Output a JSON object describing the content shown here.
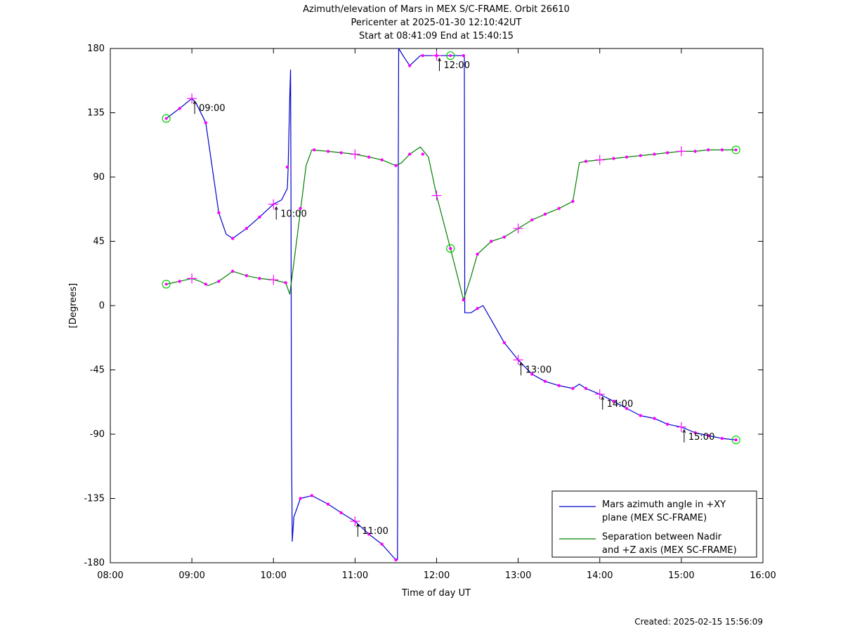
{
  "chart_data": {
    "type": "line",
    "title": [
      "Azimuth/elevation of Mars in MEX S/C-FRAME.  Orbit 26610",
      "Pericenter at 2025-01-30 12:10:42UT",
      "Start at 08:41:09 End at 15:40:15"
    ],
    "xlabel": "Time of day UT",
    "ylabel": "[Degrees]",
    "xlim": [
      8,
      16
    ],
    "ylim": [
      -180,
      180
    ],
    "xticks": [
      8,
      9,
      10,
      11,
      12,
      13,
      14,
      15,
      16
    ],
    "xtick_labels": [
      "08:00",
      "09:00",
      "10:00",
      "11:00",
      "12:00",
      "13:00",
      "14:00",
      "15:00",
      "16:00"
    ],
    "yticks": [
      180,
      135,
      90,
      45,
      0,
      -45,
      -90,
      -135,
      -180
    ],
    "ytick_labels": [
      "180",
      "135",
      "90",
      "45",
      "0",
      "-45",
      "-90",
      "-135",
      "-180"
    ],
    "legend_placement": "bottom-right",
    "series": [
      {
        "name": "Mars azimuth angle in +XY plane (MEX SC-FRAME)",
        "legend_lines": [
          "Mars azimuth angle in +XY",
          "plane (MEX SC-FRAME)"
        ],
        "color": "#0000cc",
        "points": [
          [
            8.686,
            131
          ],
          [
            8.85,
            138
          ],
          [
            9.0,
            145
          ],
          [
            9.05,
            142
          ],
          [
            9.17,
            128
          ],
          [
            9.33,
            65
          ],
          [
            9.42,
            50
          ],
          [
            9.5,
            47
          ],
          [
            9.67,
            54
          ],
          [
            9.83,
            62
          ],
          [
            10.0,
            71
          ],
          [
            10.1,
            74
          ],
          [
            10.17,
            82
          ],
          [
            10.18,
            97
          ],
          [
            10.2,
            147
          ],
          [
            10.21,
            165
          ],
          [
            10.215,
            80
          ],
          [
            10.22,
            -80
          ],
          [
            10.23,
            -165
          ],
          [
            10.25,
            -148
          ],
          [
            10.33,
            -135
          ],
          [
            10.47,
            -133
          ],
          [
            10.67,
            -139
          ],
          [
            10.83,
            -145
          ],
          [
            11.0,
            -151
          ],
          [
            11.17,
            -160
          ],
          [
            11.33,
            -167
          ],
          [
            11.5,
            -178
          ],
          [
            11.52,
            -178
          ],
          [
            11.525,
            -90
          ],
          [
            11.53,
            90
          ],
          [
            11.535,
            180
          ],
          [
            11.6,
            174
          ],
          [
            11.67,
            168
          ],
          [
            11.8,
            175
          ],
          [
            12.0,
            175
          ],
          [
            12.17,
            175
          ],
          [
            12.33,
            175
          ],
          [
            12.34,
            175
          ],
          [
            12.345,
            -5
          ],
          [
            12.42,
            -5
          ],
          [
            12.5,
            -2
          ],
          [
            12.57,
            0
          ],
          [
            12.67,
            -10
          ],
          [
            12.83,
            -26
          ],
          [
            13.0,
            -38
          ],
          [
            13.17,
            -48
          ],
          [
            13.33,
            -53
          ],
          [
            13.5,
            -56
          ],
          [
            13.67,
            -58
          ],
          [
            13.75,
            -55
          ],
          [
            13.83,
            -58
          ],
          [
            14.0,
            -62
          ],
          [
            14.17,
            -67
          ],
          [
            14.33,
            -72
          ],
          [
            14.5,
            -77
          ],
          [
            14.67,
            -79
          ],
          [
            14.83,
            -83
          ],
          [
            15.0,
            -85
          ],
          [
            15.17,
            -89
          ],
          [
            15.33,
            -91
          ],
          [
            15.5,
            -93
          ],
          [
            15.67,
            -94
          ]
        ],
        "markers": [
          [
            8.85,
            138
          ],
          [
            9.17,
            128
          ],
          [
            9.33,
            65
          ],
          [
            9.5,
            47
          ],
          [
            9.67,
            54
          ],
          [
            9.83,
            62
          ],
          [
            10.17,
            97
          ],
          [
            10.33,
            -135
          ],
          [
            10.47,
            -133
          ],
          [
            10.67,
            -139
          ],
          [
            10.83,
            -145
          ],
          [
            11.17,
            -160
          ],
          [
            11.33,
            -167
          ],
          [
            11.5,
            -178
          ],
          [
            11.67,
            168
          ],
          [
            11.83,
            175
          ],
          [
            12.0,
            175
          ],
          [
            12.33,
            175
          ],
          [
            12.5,
            -2
          ],
          [
            12.83,
            -26
          ],
          [
            13.17,
            -48
          ],
          [
            13.33,
            -53
          ],
          [
            13.5,
            -56
          ],
          [
            13.67,
            -58
          ],
          [
            13.83,
            -58
          ],
          [
            14.17,
            -67
          ],
          [
            14.33,
            -72
          ],
          [
            14.5,
            -77
          ],
          [
            14.67,
            -79
          ],
          [
            14.83,
            -83
          ],
          [
            15.17,
            -89
          ],
          [
            15.33,
            -91
          ],
          [
            15.5,
            -93
          ],
          [
            15.67,
            -94
          ]
        ],
        "hour_markers": [
          [
            9.0,
            145
          ],
          [
            10.0,
            71
          ],
          [
            11.0,
            -151
          ],
          [
            12.0,
            175
          ],
          [
            13.0,
            -38
          ],
          [
            14.0,
            -62
          ],
          [
            15.0,
            -85
          ]
        ],
        "circles": [
          [
            8.686,
            131
          ],
          [
            12.17,
            175
          ],
          [
            15.67,
            -94
          ]
        ]
      },
      {
        "name": "Separation between Nadir and +Z axis (MEX SC-FRAME)",
        "legend_lines": [
          "Separation between Nadir",
          "and +Z axis (MEX SC-FRAME)"
        ],
        "color": "#008000",
        "points": [
          [
            8.686,
            15
          ],
          [
            8.85,
            17
          ],
          [
            9.0,
            19
          ],
          [
            9.1,
            17
          ],
          [
            9.2,
            14
          ],
          [
            9.33,
            17
          ],
          [
            9.5,
            24
          ],
          [
            9.67,
            21
          ],
          [
            9.83,
            19
          ],
          [
            10.0,
            18
          ],
          [
            10.15,
            16
          ],
          [
            10.2,
            8
          ],
          [
            10.25,
            30
          ],
          [
            10.33,
            66
          ],
          [
            10.4,
            98
          ],
          [
            10.47,
            109
          ],
          [
            10.67,
            108
          ],
          [
            10.83,
            107
          ],
          [
            11.0,
            106
          ],
          [
            11.17,
            104
          ],
          [
            11.33,
            102
          ],
          [
            11.5,
            98
          ],
          [
            11.57,
            100
          ],
          [
            11.67,
            106
          ],
          [
            11.8,
            111
          ],
          [
            11.9,
            104
          ],
          [
            12.0,
            77
          ],
          [
            12.17,
            40
          ],
          [
            12.33,
            4
          ],
          [
            12.42,
            20
          ],
          [
            12.5,
            36
          ],
          [
            12.67,
            45
          ],
          [
            12.83,
            48
          ],
          [
            13.0,
            54
          ],
          [
            13.17,
            60
          ],
          [
            13.33,
            64
          ],
          [
            13.5,
            68
          ],
          [
            13.67,
            73
          ],
          [
            13.75,
            100
          ],
          [
            13.83,
            101
          ],
          [
            14.0,
            102
          ],
          [
            14.17,
            103
          ],
          [
            14.33,
            104
          ],
          [
            14.5,
            105
          ],
          [
            14.67,
            106
          ],
          [
            14.83,
            107
          ],
          [
            15.0,
            108
          ],
          [
            15.17,
            108
          ],
          [
            15.33,
            109
          ],
          [
            15.5,
            109
          ],
          [
            15.67,
            109
          ]
        ],
        "markers": [
          [
            8.85,
            17
          ],
          [
            9.17,
            15
          ],
          [
            9.33,
            17
          ],
          [
            9.5,
            24
          ],
          [
            9.67,
            21
          ],
          [
            9.83,
            19
          ],
          [
            10.15,
            16
          ],
          [
            10.33,
            68
          ],
          [
            10.5,
            109
          ],
          [
            10.67,
            108
          ],
          [
            10.83,
            107
          ],
          [
            11.17,
            104
          ],
          [
            11.33,
            102
          ],
          [
            11.5,
            98
          ],
          [
            11.67,
            106
          ],
          [
            11.83,
            106
          ],
          [
            12.17,
            40
          ],
          [
            12.33,
            4
          ],
          [
            12.5,
            36
          ],
          [
            12.67,
            45
          ],
          [
            12.83,
            48
          ],
          [
            13.17,
            60
          ],
          [
            13.33,
            64
          ],
          [
            13.5,
            68
          ],
          [
            13.67,
            73
          ],
          [
            13.83,
            101
          ],
          [
            14.17,
            103
          ],
          [
            14.33,
            104
          ],
          [
            14.5,
            105
          ],
          [
            14.67,
            106
          ],
          [
            14.83,
            107
          ],
          [
            15.17,
            108
          ],
          [
            15.33,
            109
          ],
          [
            15.5,
            109
          ]
        ],
        "hour_markers": [
          [
            9.0,
            19
          ],
          [
            10.0,
            18
          ],
          [
            11.0,
            106
          ],
          [
            12.0,
            77
          ],
          [
            13.0,
            54
          ],
          [
            14.0,
            102
          ],
          [
            15.0,
            108
          ]
        ],
        "circles": [
          [
            8.686,
            15
          ],
          [
            12.17,
            40
          ],
          [
            15.67,
            109
          ]
        ]
      }
    ],
    "annotations": [
      {
        "text": "09:00",
        "x": 9.0,
        "y": 145
      },
      {
        "text": "10:00",
        "x": 10.0,
        "y": 71
      },
      {
        "text": "11:00",
        "x": 11.0,
        "y": -151
      },
      {
        "text": "12:00",
        "x": 12.0,
        "y": 175
      },
      {
        "text": "13:00",
        "x": 13.0,
        "y": -38
      },
      {
        "text": "14:00",
        "x": 14.0,
        "y": -62
      },
      {
        "text": "15:00",
        "x": 15.0,
        "y": -85
      }
    ],
    "footer": "Created: 2025-02-15 15:56:09"
  }
}
